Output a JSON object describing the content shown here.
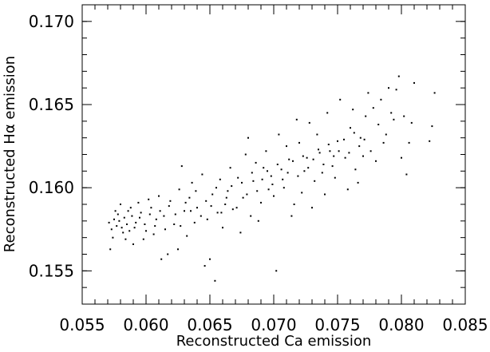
{
  "chart_data": {
    "type": "scatter",
    "title": "",
    "xlabel": "Reconstructed Ca emission",
    "ylabel": "Reconstructed Hα emission",
    "xlim": [
      0.055,
      0.085
    ],
    "ylim": [
      0.153,
      0.171
    ],
    "grid": false,
    "legend": "none",
    "marker_color": "#000000",
    "x_ticks": [
      0.055,
      0.06,
      0.065,
      0.07,
      0.075,
      0.08,
      0.085
    ],
    "x_tick_labels": [
      "0.055",
      "0.060",
      "0.065",
      "0.070",
      "0.075",
      "0.080",
      "0.085"
    ],
    "y_ticks": [
      0.155,
      0.16,
      0.165,
      0.17
    ],
    "y_tick_labels": [
      "0.155",
      "0.160",
      "0.165",
      "0.170"
    ],
    "points": [
      [
        0.0571,
        0.1579
      ],
      [
        0.0573,
        0.1575
      ],
      [
        0.0575,
        0.1581
      ],
      [
        0.0577,
        0.1577
      ],
      [
        0.0579,
        0.158
      ],
      [
        0.0581,
        0.1576
      ],
      [
        0.0583,
        0.1582
      ],
      [
        0.0585,
        0.1578
      ],
      [
        0.0587,
        0.1574
      ],
      [
        0.0589,
        0.1583
      ],
      [
        0.0572,
        0.1563
      ],
      [
        0.0576,
        0.1586
      ],
      [
        0.058,
        0.159
      ],
      [
        0.0584,
        0.1569
      ],
      [
        0.0588,
        0.1588
      ],
      [
        0.0592,
        0.1579
      ],
      [
        0.0596,
        0.1585
      ],
      [
        0.06,
        0.1574
      ],
      [
        0.0604,
        0.1588
      ],
      [
        0.0608,
        0.1581
      ],
      [
        0.059,
        0.1566
      ],
      [
        0.0594,
        0.1591
      ],
      [
        0.0598,
        0.1569
      ],
      [
        0.0602,
        0.1593
      ],
      [
        0.0606,
        0.1572
      ],
      [
        0.061,
        0.1595
      ],
      [
        0.0614,
        0.1583
      ],
      [
        0.0618,
        0.1589
      ],
      [
        0.0612,
        0.1557
      ],
      [
        0.0617,
        0.156
      ],
      [
        0.0622,
        0.1578
      ],
      [
        0.0626,
        0.1599
      ],
      [
        0.063,
        0.1586
      ],
      [
        0.0634,
        0.1594
      ],
      [
        0.0638,
        0.1579
      ],
      [
        0.0625,
        0.1563
      ],
      [
        0.0628,
        0.1613
      ],
      [
        0.0632,
        0.1571
      ],
      [
        0.0636,
        0.1603
      ],
      [
        0.064,
        0.1588
      ],
      [
        0.0644,
        0.1608
      ],
      [
        0.0648,
        0.1581
      ],
      [
        0.0652,
        0.1596
      ],
      [
        0.0656,
        0.1585
      ],
      [
        0.065,
        0.1557
      ],
      [
        0.0646,
        0.1553
      ],
      [
        0.0654,
        0.1544
      ],
      [
        0.0658,
        0.1605
      ],
      [
        0.0662,
        0.159
      ],
      [
        0.0666,
        0.1612
      ],
      [
        0.066,
        0.1576
      ],
      [
        0.0664,
        0.1598
      ],
      [
        0.0668,
        0.1587
      ],
      [
        0.0672,
        0.1606
      ],
      [
        0.0676,
        0.1594
      ],
      [
        0.068,
        0.163
      ],
      [
        0.0684,
        0.1604
      ],
      [
        0.0688,
        0.158
      ],
      [
        0.0692,
        0.1612
      ],
      [
        0.0696,
        0.1599
      ],
      [
        0.0674,
        0.1573
      ],
      [
        0.0678,
        0.162
      ],
      [
        0.0682,
        0.1583
      ],
      [
        0.0686,
        0.1615
      ],
      [
        0.069,
        0.1591
      ],
      [
        0.0694,
        0.1622
      ],
      [
        0.0698,
        0.1607
      ],
      [
        0.0702,
        0.155
      ],
      [
        0.0706,
        0.1611
      ],
      [
        0.071,
        0.1625
      ],
      [
        0.07,
        0.1595
      ],
      [
        0.0704,
        0.1632
      ],
      [
        0.0708,
        0.16
      ],
      [
        0.0712,
        0.1617
      ],
      [
        0.0716,
        0.159
      ],
      [
        0.072,
        0.1627
      ],
      [
        0.0724,
        0.161
      ],
      [
        0.0728,
        0.1639
      ],
      [
        0.0732,
        0.1604
      ],
      [
        0.0736,
        0.1621
      ],
      [
        0.0714,
        0.1583
      ],
      [
        0.0718,
        0.1641
      ],
      [
        0.0722,
        0.1597
      ],
      [
        0.0726,
        0.1618
      ],
      [
        0.073,
        0.1588
      ],
      [
        0.0734,
        0.1632
      ],
      [
        0.0738,
        0.1609
      ],
      [
        0.0742,
        0.1645
      ],
      [
        0.0746,
        0.1613
      ],
      [
        0.075,
        0.1628
      ],
      [
        0.074,
        0.1596
      ],
      [
        0.0744,
        0.1622
      ],
      [
        0.0748,
        0.1606
      ],
      [
        0.0752,
        0.1653
      ],
      [
        0.0756,
        0.1618
      ],
      [
        0.076,
        0.1636
      ],
      [
        0.0764,
        0.1611
      ],
      [
        0.0768,
        0.163
      ],
      [
        0.0772,
        0.1643
      ],
      [
        0.0776,
        0.1622
      ],
      [
        0.0758,
        0.1599
      ],
      [
        0.0762,
        0.1647
      ],
      [
        0.0766,
        0.1603
      ],
      [
        0.077,
        0.1619
      ],
      [
        0.0774,
        0.1657
      ],
      [
        0.0778,
        0.1648
      ],
      [
        0.0782,
        0.1638
      ],
      [
        0.0786,
        0.1627
      ],
      [
        0.079,
        0.166
      ],
      [
        0.0794,
        0.1641
      ],
      [
        0.078,
        0.1616
      ],
      [
        0.0784,
        0.1653
      ],
      [
        0.0788,
        0.1632
      ],
      [
        0.0792,
        0.1645
      ],
      [
        0.0798,
        0.1667
      ],
      [
        0.0802,
        0.1643
      ],
      [
        0.0806,
        0.1627
      ],
      [
        0.081,
        0.1663
      ],
      [
        0.0804,
        0.1608
      ],
      [
        0.0808,
        0.1639
      ],
      [
        0.0822,
        0.1628
      ],
      [
        0.0824,
        0.1637
      ],
      [
        0.0826,
        0.1657
      ],
      [
        0.08,
        0.1618
      ],
      [
        0.0796,
        0.1659
      ],
      [
        0.0574,
        0.157
      ],
      [
        0.0578,
        0.1584
      ],
      [
        0.0582,
        0.1573
      ],
      [
        0.0586,
        0.1586
      ],
      [
        0.0591,
        0.1576
      ],
      [
        0.0595,
        0.1582
      ],
      [
        0.0599,
        0.1578
      ],
      [
        0.0603,
        0.1584
      ],
      [
        0.0607,
        0.1577
      ],
      [
        0.0611,
        0.1586
      ],
      [
        0.0615,
        0.1575
      ],
      [
        0.0619,
        0.1592
      ],
      [
        0.0623,
        0.1584
      ],
      [
        0.0627,
        0.1577
      ],
      [
        0.0631,
        0.1591
      ],
      [
        0.0635,
        0.1586
      ],
      [
        0.0639,
        0.1598
      ],
      [
        0.0643,
        0.1583
      ],
      [
        0.0647,
        0.1592
      ],
      [
        0.0651,
        0.1589
      ],
      [
        0.0655,
        0.16
      ],
      [
        0.0659,
        0.1585
      ],
      [
        0.0663,
        0.1594
      ],
      [
        0.0667,
        0.1601
      ],
      [
        0.0671,
        0.1588
      ],
      [
        0.0675,
        0.1603
      ],
      [
        0.0679,
        0.1596
      ],
      [
        0.0683,
        0.1609
      ],
      [
        0.0687,
        0.1598
      ],
      [
        0.0691,
        0.1605
      ],
      [
        0.0695,
        0.161
      ],
      [
        0.0699,
        0.1602
      ],
      [
        0.0703,
        0.1614
      ],
      [
        0.0707,
        0.1605
      ],
      [
        0.0711,
        0.1609
      ],
      [
        0.0715,
        0.1616
      ],
      [
        0.0719,
        0.1607
      ],
      [
        0.0723,
        0.1619
      ],
      [
        0.0727,
        0.1612
      ],
      [
        0.0731,
        0.1617
      ],
      [
        0.0735,
        0.1623
      ],
      [
        0.0739,
        0.1614
      ],
      [
        0.0743,
        0.1626
      ],
      [
        0.0747,
        0.1619
      ],
      [
        0.0751,
        0.1622
      ],
      [
        0.0755,
        0.1629
      ],
      [
        0.0759,
        0.1621
      ],
      [
        0.0763,
        0.1633
      ],
      [
        0.0767,
        0.1625
      ],
      [
        0.0771,
        0.1629
      ]
    ]
  }
}
